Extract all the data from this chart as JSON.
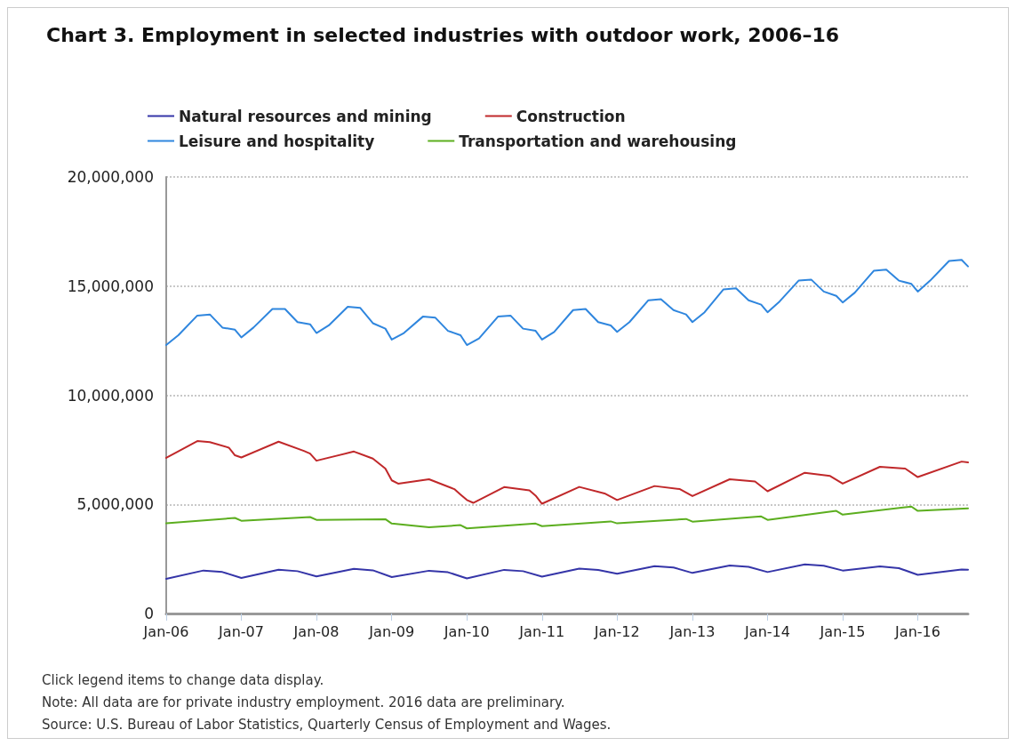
{
  "chart_data": {
    "type": "line",
    "title": "Chart 3. Employment in selected industries with outdoor work, 2006–16",
    "annotations": [
      "Click legend items to change data display.",
      "Note: All data are for private industry employment. 2016 data are preliminary.",
      "Source: U.S. Bureau of Labor Statistics, Quarterly Census of Employment and Wages."
    ],
    "series": [
      {
        "name": "Natural resources and mining",
        "color": "#3535a8",
        "x": [
          "2006-01",
          "2006-07",
          "2006-10",
          "2007-01",
          "2007-07",
          "2007-10",
          "2008-01",
          "2008-07",
          "2008-10",
          "2009-01",
          "2009-07",
          "2009-10",
          "2010-01",
          "2010-07",
          "2010-10",
          "2011-01",
          "2011-07",
          "2011-10",
          "2012-01",
          "2012-07",
          "2012-10",
          "2013-01",
          "2013-07",
          "2013-10",
          "2014-01",
          "2014-07",
          "2014-10",
          "2015-01",
          "2015-07",
          "2015-10",
          "2016-01",
          "2016-08",
          "2016-09"
        ],
        "values": [
          1590000,
          1970000,
          1900000,
          1630000,
          2010000,
          1940000,
          1700000,
          2050000,
          1980000,
          1670000,
          1960000,
          1890000,
          1610000,
          2000000,
          1940000,
          1690000,
          2060000,
          2000000,
          1820000,
          2170000,
          2110000,
          1860000,
          2200000,
          2140000,
          1900000,
          2250000,
          2190000,
          1970000,
          2160000,
          2080000,
          1770000,
          2020000,
          2010000
        ]
      },
      {
        "name": "Construction",
        "color": "#c0282a",
        "x": [
          "2006-01",
          "2006-06",
          "2006-08",
          "2006-11",
          "2006-12",
          "2007-01",
          "2007-07",
          "2007-11",
          "2007-12",
          "2008-01",
          "2008-07",
          "2008-10",
          "2008-12",
          "2009-01",
          "2009-02",
          "2009-07",
          "2009-11",
          "2009-12",
          "2010-01",
          "2010-02",
          "2010-07",
          "2010-11",
          "2010-12",
          "2011-01",
          "2011-07",
          "2011-11",
          "2012-01",
          "2012-07",
          "2012-11",
          "2013-01",
          "2013-07",
          "2013-11",
          "2014-01",
          "2014-07",
          "2014-11",
          "2015-01",
          "2015-07",
          "2015-11",
          "2016-01",
          "2016-08",
          "2016-09"
        ],
        "values": [
          7130000,
          7900000,
          7850000,
          7600000,
          7250000,
          7150000,
          7870000,
          7450000,
          7330000,
          7000000,
          7420000,
          7100000,
          6640000,
          6100000,
          5950000,
          6150000,
          5700000,
          5450000,
          5200000,
          5070000,
          5790000,
          5640000,
          5400000,
          5030000,
          5800000,
          5500000,
          5200000,
          5840000,
          5700000,
          5380000,
          6150000,
          6050000,
          5600000,
          6450000,
          6300000,
          5950000,
          6720000,
          6640000,
          6250000,
          6960000,
          6920000
        ]
      },
      {
        "name": "Leisure and hospitality",
        "color": "#2f86de",
        "x": [
          "2006-01",
          "2006-03",
          "2006-06",
          "2006-08",
          "2006-10",
          "2006-12",
          "2007-01",
          "2007-03",
          "2007-06",
          "2007-08",
          "2007-10",
          "2007-12",
          "2008-01",
          "2008-03",
          "2008-06",
          "2008-08",
          "2008-10",
          "2008-12",
          "2009-01",
          "2009-03",
          "2009-06",
          "2009-08",
          "2009-10",
          "2009-12",
          "2010-01",
          "2010-03",
          "2010-06",
          "2010-08",
          "2010-10",
          "2010-12",
          "2011-01",
          "2011-03",
          "2011-06",
          "2011-08",
          "2011-10",
          "2011-12",
          "2012-01",
          "2012-03",
          "2012-06",
          "2012-08",
          "2012-10",
          "2012-12",
          "2013-01",
          "2013-03",
          "2013-06",
          "2013-08",
          "2013-10",
          "2013-12",
          "2014-01",
          "2014-03",
          "2014-06",
          "2014-08",
          "2014-10",
          "2014-12",
          "2015-01",
          "2015-03",
          "2015-06",
          "2015-08",
          "2015-10",
          "2015-12",
          "2016-01",
          "2016-03",
          "2016-06",
          "2016-08",
          "2016-09"
        ],
        "values": [
          12300000,
          12750000,
          13650000,
          13700000,
          13100000,
          13000000,
          12650000,
          13100000,
          13950000,
          13950000,
          13350000,
          13250000,
          12850000,
          13200000,
          14050000,
          14000000,
          13300000,
          13050000,
          12550000,
          12850000,
          13600000,
          13550000,
          12950000,
          12750000,
          12300000,
          12600000,
          13600000,
          13650000,
          13050000,
          12950000,
          12550000,
          12900000,
          13900000,
          13950000,
          13350000,
          13200000,
          12900000,
          13350000,
          14350000,
          14400000,
          13900000,
          13700000,
          13350000,
          13800000,
          14850000,
          14900000,
          14350000,
          14150000,
          13800000,
          14300000,
          15250000,
          15300000,
          14750000,
          14550000,
          14250000,
          14700000,
          15700000,
          15750000,
          15250000,
          15100000,
          14750000,
          15250000,
          16150000,
          16200000,
          15900000
        ]
      },
      {
        "name": "Transportation and warehousing",
        "color": "#5cae1f",
        "x": [
          "2006-01",
          "2006-12",
          "2007-01",
          "2007-12",
          "2008-01",
          "2008-12",
          "2009-01",
          "2009-07",
          "2009-12",
          "2010-01",
          "2010-12",
          "2011-01",
          "2011-12",
          "2012-01",
          "2012-12",
          "2013-01",
          "2013-12",
          "2014-01",
          "2014-12",
          "2015-01",
          "2015-12",
          "2016-01",
          "2016-09"
        ],
        "values": [
          4130000,
          4380000,
          4250000,
          4420000,
          4290000,
          4320000,
          4120000,
          3950000,
          4050000,
          3900000,
          4120000,
          4000000,
          4220000,
          4130000,
          4330000,
          4210000,
          4450000,
          4290000,
          4700000,
          4530000,
          4900000,
          4700000,
          4820000
        ]
      }
    ],
    "xlim": [
      "2006-01",
      "2016-09"
    ],
    "xticks": [
      {
        "value": "2006-01",
        "label": "Jan-06"
      },
      {
        "value": "2007-01",
        "label": "Jan-07"
      },
      {
        "value": "2008-01",
        "label": "Jan-08"
      },
      {
        "value": "2009-01",
        "label": "Jan-09"
      },
      {
        "value": "2010-01",
        "label": "Jan-10"
      },
      {
        "value": "2011-01",
        "label": "Jan-11"
      },
      {
        "value": "2012-01",
        "label": "Jan-12"
      },
      {
        "value": "2013-01",
        "label": "Jan-13"
      },
      {
        "value": "2014-01",
        "label": "Jan-14"
      },
      {
        "value": "2015-01",
        "label": "Jan-15"
      },
      {
        "value": "2016-01",
        "label": "Jan-16"
      }
    ],
    "ylim": [
      0,
      20000000
    ],
    "yticks": [
      0,
      {
        "value": 5000000,
        "label": "5,000,000"
      },
      {
        "value": 10000000,
        "label": "10,000,000"
      },
      {
        "value": 15000000,
        "label": "15,000,000"
      },
      {
        "value": 20000000,
        "label": "20,000,000"
      }
    ],
    "grid": "y",
    "legend": "top",
    "marker": "none",
    "line_style": "solid"
  }
}
